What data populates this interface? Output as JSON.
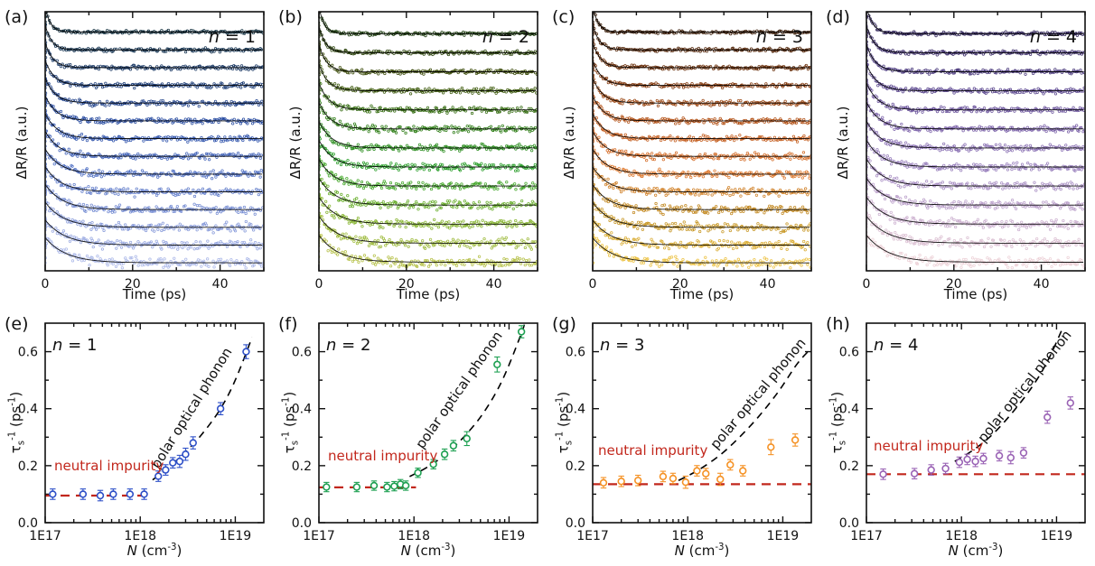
{
  "labels": {
    "time_axis": "Time (ps)",
    "dRR_axis": "ΔR/R (a.u.)",
    "N_axis_parts": [
      {
        "t": "N",
        "s": "i"
      },
      {
        "t": " (cm"
      },
      {
        "t": "-3",
        "s": "sup"
      },
      {
        "t": ")"
      }
    ],
    "tau_axis_parts": [
      {
        "t": "τ"
      },
      {
        "t": "s",
        "s": "sub"
      },
      {
        "t": "-1",
        "s": "sup"
      },
      {
        "t": " (ps"
      },
      {
        "t": "-1",
        "s": "sup"
      },
      {
        "t": ")"
      }
    ]
  },
  "chart_data": [
    {
      "panel": "a",
      "letter": "(a)",
      "type": "decay",
      "n_parts": [
        {
          "t": "n",
          "s": "i"
        },
        {
          "t": " = 1"
        }
      ],
      "xlabel": "Time (ps)",
      "ylabel": "ΔR/R (a.u.)",
      "xlim": [
        0,
        50
      ],
      "xticks_major": [
        0,
        20,
        40
      ],
      "xticks_minor": [
        10,
        30,
        50
      ],
      "xtick_labels": [
        "0",
        "20",
        "40"
      ],
      "num_curves": 14,
      "tau_ps": [
        1.2,
        4.8
      ],
      "seed": 11,
      "fit_color": "#000000",
      "colors": [
        "#14303f",
        "#1d3c70",
        "#2c4fa6",
        "#4d6ec2",
        "#7e93d6",
        "#aab7e8"
      ]
    },
    {
      "panel": "b",
      "letter": "(b)",
      "type": "decay",
      "n_parts": [
        {
          "t": "n",
          "s": "i"
        },
        {
          "t": " = 2"
        }
      ],
      "xlabel": "Time (ps)",
      "ylabel": "ΔR/R (a.u.)",
      "xlim": [
        0,
        50
      ],
      "xticks_major": [
        0,
        20,
        40
      ],
      "xticks_minor": [
        10,
        30,
        50
      ],
      "xtick_labels": [
        "0",
        "20",
        "40"
      ],
      "num_curves": 13,
      "tau_ps": [
        1.2,
        4.5
      ],
      "seed": 22,
      "fit_color": "#000000",
      "colors": [
        "#1b3a0d",
        "#46520e",
        "#2e7a14",
        "#2aa12c",
        "#7cb22a",
        "#b5c047"
      ]
    },
    {
      "panel": "c",
      "letter": "(c)",
      "type": "decay",
      "n_parts": [
        {
          "t": "n",
          "s": "i"
        },
        {
          "t": " = 3"
        }
      ],
      "xlabel": "Time (ps)",
      "ylabel": "ΔR/R (a.u.)",
      "xlim": [
        0,
        50
      ],
      "xticks_major": [
        0,
        20,
        40
      ],
      "xticks_minor": [
        10,
        30,
        50
      ],
      "xtick_labels": [
        "0",
        "20",
        "40"
      ],
      "num_curves": 14,
      "tau_ps": [
        1.3,
        4.5
      ],
      "seed": 33,
      "fit_color": "#000000",
      "colors": [
        "#3a1d09",
        "#7a370e",
        "#b85418",
        "#e0762e",
        "#bd8b1e",
        "#ecc243"
      ]
    },
    {
      "panel": "d",
      "letter": "(d)",
      "type": "decay",
      "n_parts": [
        {
          "t": "n",
          "s": "i"
        },
        {
          "t": " = 4"
        }
      ],
      "xlabel": "Time (ps)",
      "ylabel": "ΔR/R (a.u.)",
      "xlim": [
        0,
        50
      ],
      "xticks_major": [
        0,
        20,
        40
      ],
      "xticks_minor": [
        10,
        30,
        50
      ],
      "xtick_labels": [
        "0",
        "20",
        "40"
      ],
      "num_curves": 13,
      "tau_ps": [
        1.5,
        5.0
      ],
      "seed": 44,
      "fit_color": "#000000",
      "colors": [
        "#2f2358",
        "#524086",
        "#7a61a8",
        "#9c83bf",
        "#c4a8cd",
        "#ecd0d6"
      ]
    },
    {
      "panel": "e",
      "letter": "(e)",
      "type": "scatter",
      "n_parts": [
        {
          "t": "n",
          "s": "i"
        },
        {
          "t": " = 1"
        }
      ],
      "xlim_log": [
        17,
        19.3
      ],
      "ylim": [
        0,
        0.7
      ],
      "xticks": [
        {
          "v": 1e+17,
          "label": "1E17"
        },
        {
          "v": 1e+18,
          "label": "1E18"
        },
        {
          "v": 1e+19,
          "label": "1E19"
        }
      ],
      "yticks": [
        {
          "v": 0.0,
          "label": "0.0"
        },
        {
          "v": 0.2,
          "label": "0.2"
        },
        {
          "v": 0.4,
          "label": "0.4"
        },
        {
          "v": 0.6,
          "label": "0.6"
        }
      ],
      "yticks_minor": [
        0.1,
        0.3,
        0.5
      ],
      "marker_color": "#2e50c8",
      "points": [
        [
          1.2e+17,
          0.1,
          0.012
        ],
        [
          2.5e+17,
          0.1,
          0.012
        ],
        [
          3.8e+17,
          0.095,
          0.012
        ],
        [
          5.2e+17,
          0.1,
          0.012
        ],
        [
          7.8e+17,
          0.1,
          0.012
        ],
        [
          1.1e+18,
          0.1,
          0.012
        ],
        [
          1.55e+18,
          0.163,
          0.012
        ],
        [
          1.85e+18,
          0.185,
          0.012
        ],
        [
          2.2e+18,
          0.21,
          0.012
        ],
        [
          2.6e+18,
          0.215,
          0.015
        ],
        [
          3e+18,
          0.24,
          0.015
        ],
        [
          3.6e+18,
          0.28,
          0.015
        ],
        [
          7e+18,
          0.4,
          0.015
        ],
        [
          1.3e+19,
          0.6,
          0.018
        ]
      ],
      "impurity_line": {
        "y": 0.095,
        "x_from": 1e+17,
        "x_to": 1.2e+18,
        "color": "#c2271c"
      },
      "phonon_curve": {
        "color": "#000000",
        "points": [
          [
            1.35e+18,
            0.15
          ],
          [
            2e+18,
            0.195
          ],
          [
            3e+18,
            0.248
          ],
          [
            4.5e+18,
            0.312
          ],
          [
            7e+18,
            0.4
          ],
          [
            1e+19,
            0.5
          ],
          [
            1.5e+19,
            0.65
          ]
        ]
      },
      "annotations": {
        "phonon": "polar optical phonon",
        "impurity": "neutral impurity"
      }
    },
    {
      "panel": "f",
      "letter": "(f)",
      "type": "scatter",
      "n_parts": [
        {
          "t": "n",
          "s": "i"
        },
        {
          "t": " = 2"
        }
      ],
      "xlim_log": [
        17,
        19.3
      ],
      "ylim": [
        0,
        0.7
      ],
      "xticks": [
        {
          "v": 1e+17,
          "label": "1E17"
        },
        {
          "v": 1e+18,
          "label": "1E18"
        },
        {
          "v": 1e+19,
          "label": "1E19"
        }
      ],
      "yticks": [
        {
          "v": 0.0,
          "label": "0.0"
        },
        {
          "v": 0.2,
          "label": "0.2"
        },
        {
          "v": 0.4,
          "label": "0.4"
        },
        {
          "v": 0.6,
          "label": "0.6"
        }
      ],
      "yticks_minor": [
        0.1,
        0.3,
        0.5
      ],
      "marker_color": "#1ea052",
      "points": [
        [
          1.2e+17,
          0.125,
          0.01
        ],
        [
          2.5e+17,
          0.125,
          0.01
        ],
        [
          3.8e+17,
          0.13,
          0.01
        ],
        [
          5.2e+17,
          0.125,
          0.01
        ],
        [
          6.2e+17,
          0.128,
          0.01
        ],
        [
          7.2e+17,
          0.135,
          0.01
        ],
        [
          8.2e+17,
          0.13,
          0.01
        ],
        [
          1.1e+18,
          0.175,
          0.01
        ],
        [
          1.6e+18,
          0.205,
          0.01
        ],
        [
          2.1e+18,
          0.24,
          0.012
        ],
        [
          2.6e+18,
          0.27,
          0.012
        ],
        [
          3.6e+18,
          0.295,
          0.018
        ],
        [
          7.5e+18,
          0.555,
          0.02
        ],
        [
          1.35e+19,
          0.67,
          0.015
        ]
      ],
      "impurity_line": {
        "y": 0.124,
        "x_from": 1e+17,
        "x_to": 1.05e+18,
        "color": "#c2271c"
      },
      "phonon_curve": {
        "color": "#000000",
        "points": [
          [
            9e+17,
            0.162
          ],
          [
            1.4e+18,
            0.196
          ],
          [
            2.2e+18,
            0.243
          ],
          [
            3.5e+18,
            0.308
          ],
          [
            5.5e+18,
            0.39
          ],
          [
            8.5e+18,
            0.5
          ],
          [
            1.3e+19,
            0.65
          ],
          [
            1.45e+19,
            0.695
          ]
        ]
      },
      "annotations": {
        "phonon": "polar optical phonon",
        "impurity": "neutral impurity"
      }
    },
    {
      "panel": "g",
      "letter": "(g)",
      "type": "scatter",
      "n_parts": [
        {
          "t": "n",
          "s": "i"
        },
        {
          "t": " = 3"
        }
      ],
      "xlim_log": [
        17,
        19.3
      ],
      "ylim": [
        0,
        0.7
      ],
      "xticks": [
        {
          "v": 1e+17,
          "label": "1E17"
        },
        {
          "v": 1e+18,
          "label": "1E18"
        },
        {
          "v": 1e+19,
          "label": "1E19"
        }
      ],
      "yticks": [
        {
          "v": 0.0,
          "label": "0.0"
        },
        {
          "v": 0.2,
          "label": "0.2"
        },
        {
          "v": 0.4,
          "label": "0.4"
        },
        {
          "v": 0.6,
          "label": "0.6"
        }
      ],
      "yticks_minor": [
        0.1,
        0.3,
        0.5
      ],
      "marker_color": "#f59225",
      "points": [
        [
          1.3e+17,
          0.14,
          0.012
        ],
        [
          2e+17,
          0.145,
          0.012
        ],
        [
          3e+17,
          0.148,
          0.012
        ],
        [
          5.5e+17,
          0.162,
          0.012
        ],
        [
          7e+17,
          0.155,
          0.012
        ],
        [
          9.5e+17,
          0.142,
          0.015
        ],
        [
          1.25e+18,
          0.182,
          0.012
        ],
        [
          1.55e+18,
          0.172,
          0.012
        ],
        [
          2.2e+18,
          0.152,
          0.015
        ],
        [
          2.8e+18,
          0.203,
          0.012
        ],
        [
          3.8e+18,
          0.182,
          0.012
        ],
        [
          7.5e+18,
          0.265,
          0.02
        ],
        [
          1.35e+19,
          0.29,
          0.015
        ]
      ],
      "impurity_line": {
        "y": 0.135,
        "x_from": 1e+17,
        "x_to": 2e+19,
        "color": "#c2271c"
      },
      "phonon_curve": {
        "color": "#000000",
        "points": [
          [
            8e+17,
            0.148
          ],
          [
            1.3e+18,
            0.185
          ],
          [
            2.2e+18,
            0.238
          ],
          [
            3.5e+18,
            0.3
          ],
          [
            5.5e+18,
            0.37
          ],
          [
            9e+18,
            0.46
          ],
          [
            1.4e+19,
            0.555
          ],
          [
            1.9e+19,
            0.605
          ]
        ]
      },
      "annotations": {
        "phonon": "polar optical phonon",
        "impurity": "neutral impurity"
      }
    },
    {
      "panel": "h",
      "letter": "(h)",
      "type": "scatter",
      "n_parts": [
        {
          "t": "n",
          "s": "i"
        },
        {
          "t": " = 4"
        }
      ],
      "xlim_log": [
        17,
        19.3
      ],
      "ylim": [
        0,
        0.7
      ],
      "xticks": [
        {
          "v": 1e+17,
          "label": "1E17"
        },
        {
          "v": 1e+18,
          "label": "1E18"
        },
        {
          "v": 1e+19,
          "label": "1E19"
        }
      ],
      "yticks": [
        {
          "v": 0.0,
          "label": "0.0"
        },
        {
          "v": 0.2,
          "label": "0.2"
        },
        {
          "v": 0.4,
          "label": "0.4"
        },
        {
          "v": 0.6,
          "label": "0.6"
        }
      ],
      "yticks_minor": [
        0.1,
        0.3,
        0.5
      ],
      "marker_color": "#9a63b5",
      "points": [
        [
          1.5e+17,
          0.17,
          0.012
        ],
        [
          3.2e+17,
          0.172,
          0.012
        ],
        [
          4.8e+17,
          0.185,
          0.012
        ],
        [
          6.8e+17,
          0.19,
          0.012
        ],
        [
          9.5e+17,
          0.212,
          0.012
        ],
        [
          1.15e+18,
          0.222,
          0.012
        ],
        [
          1.4e+18,
          0.215,
          0.012
        ],
        [
          1.7e+18,
          0.225,
          0.012
        ],
        [
          2.5e+18,
          0.235,
          0.012
        ],
        [
          3.3e+18,
          0.228,
          0.015
        ],
        [
          4.5e+18,
          0.245,
          0.012
        ],
        [
          8e+18,
          0.37,
          0.015
        ],
        [
          1.4e+19,
          0.42,
          0.015
        ]
      ],
      "impurity_line": {
        "y": 0.17,
        "x_from": 1e+17,
        "x_to": 2e+19,
        "color": "#c2271c"
      },
      "phonon_curve": {
        "color": "#000000",
        "points": [
          [
            8.5e+17,
            0.215
          ],
          [
            1.4e+18,
            0.26
          ],
          [
            2.2e+18,
            0.315
          ],
          [
            3.5e+18,
            0.39
          ],
          [
            5.5e+18,
            0.475
          ],
          [
            8e+18,
            0.565
          ],
          [
            1.15e+19,
            0.68
          ]
        ]
      },
      "annotations": {
        "phonon": "polar optical phonon",
        "impurity": "neutral impurity"
      }
    }
  ]
}
